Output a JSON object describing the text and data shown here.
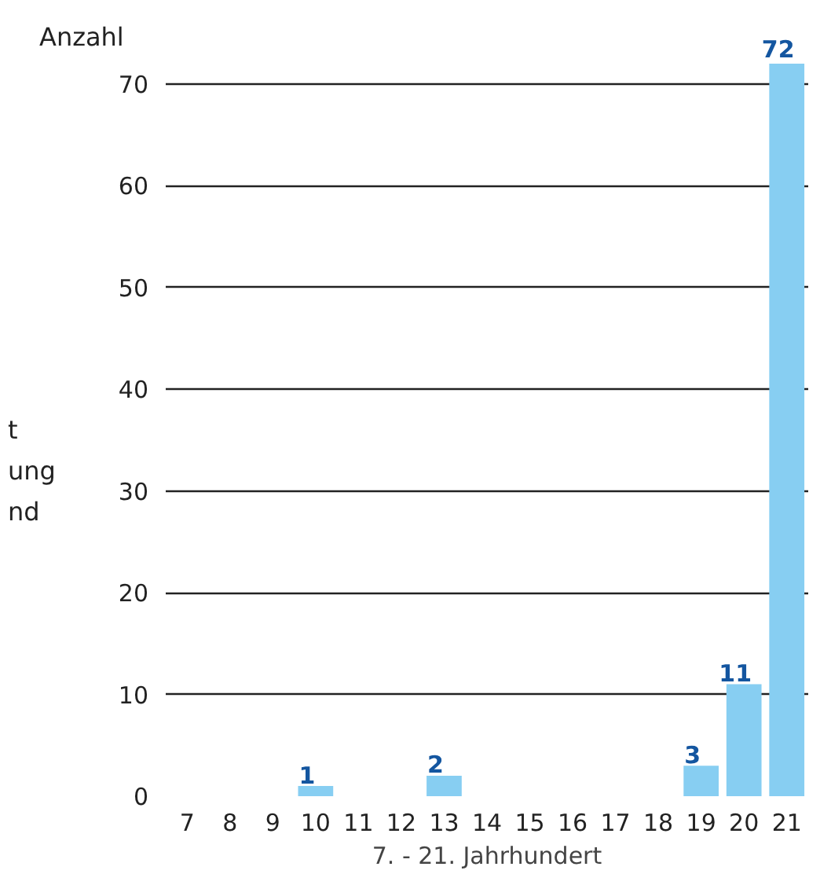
{
  "chart_data": {
    "type": "bar",
    "ylabel": "Anzahl",
    "xlabel": "7. - 21. Jahrhundert",
    "categories": [
      "7",
      "8",
      "9",
      "10",
      "11",
      "12",
      "13",
      "14",
      "15",
      "16",
      "17",
      "18",
      "19",
      "20",
      "21"
    ],
    "values": [
      0,
      0,
      0,
      1,
      0,
      0,
      2,
      0,
      0,
      0,
      0,
      0,
      3,
      11,
      72
    ],
    "value_labels": [
      null,
      null,
      null,
      "1",
      null,
      null,
      "2",
      null,
      null,
      null,
      null,
      null,
      "3",
      "11",
      "72"
    ],
    "color": "#87cef2",
    "ylim": [
      0,
      72
    ],
    "yticks": [
      0,
      10,
      20,
      30,
      40,
      50,
      60,
      70
    ],
    "grid": "y",
    "annotations": [
      "t",
      "ung",
      "nd"
    ]
  }
}
